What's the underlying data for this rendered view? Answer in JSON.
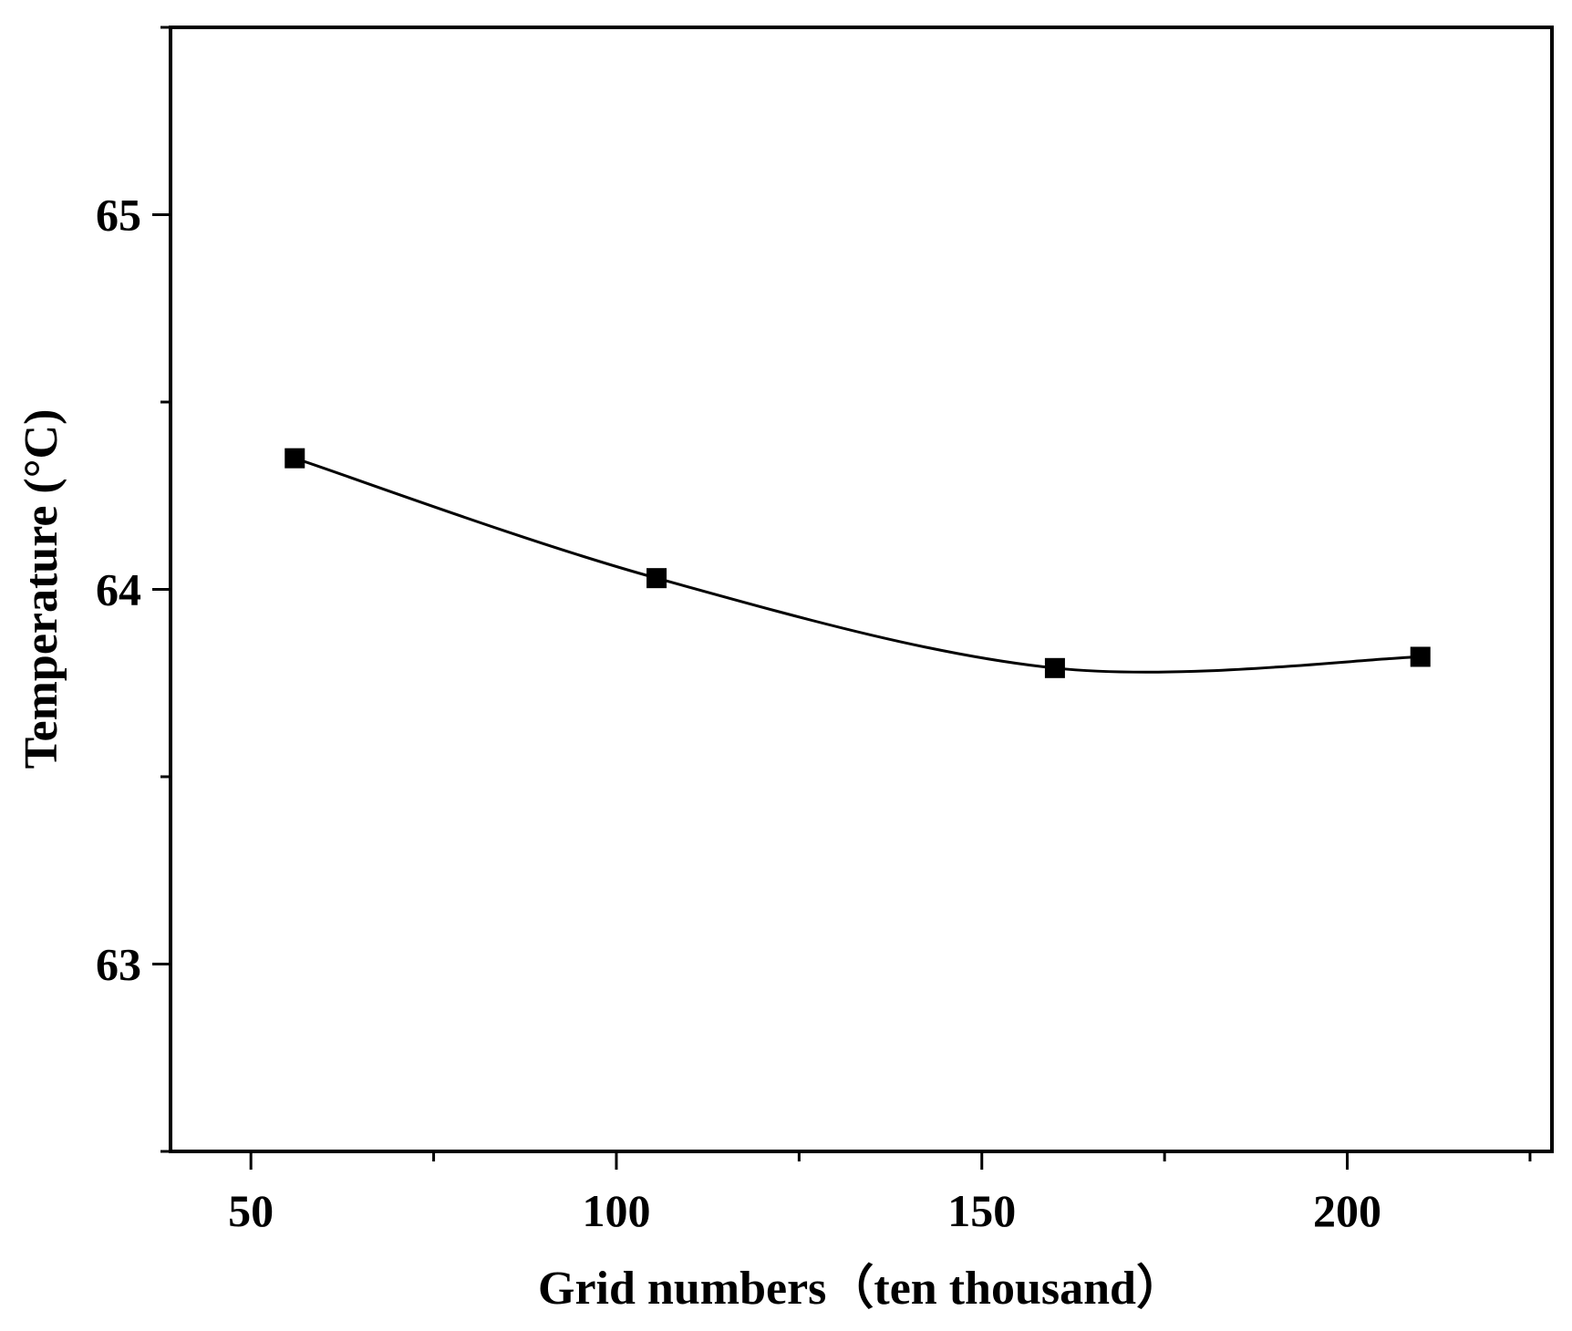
{
  "chart_data": {
    "type": "line",
    "title": "",
    "xlabel": "Grid numbers（ten thousand）",
    "ylabel": "Temperature (°C)",
    "xlim": [
      39,
      228
    ],
    "ylim": [
      62.5,
      65.5
    ],
    "x_ticks": [
      50,
      100,
      150,
      200
    ],
    "x_tick_labels": [
      "50",
      "100",
      "150",
      "200"
    ],
    "x_minor_ticks": [
      75,
      125,
      175,
      225
    ],
    "y_ticks": [
      63,
      64,
      65
    ],
    "y_tick_labels": [
      "63",
      "64",
      "65"
    ],
    "y_minor_ticks": [
      62.5,
      63.5,
      64.5,
      65.5
    ],
    "grid": false,
    "legend": "none",
    "smooth": true,
    "marker": "square",
    "series": [
      {
        "x": [
          56,
          105.5,
          160,
          210
        ],
        "y": [
          64.35,
          64.03,
          63.79,
          63.82
        ],
        "color": "#000000"
      }
    ]
  }
}
